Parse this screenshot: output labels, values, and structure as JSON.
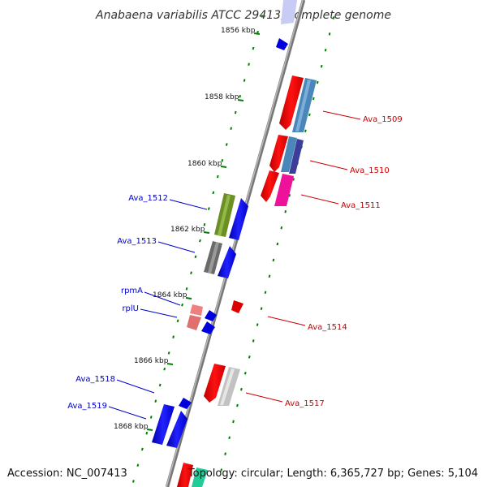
{
  "title": "Anabaena variabilis ATCC 29413, complete genome",
  "accession": "Accession: NC_007413",
  "topology": "Topology: circular; Length: 6,365,727 bp; Genes: 5,104",
  "kbp_markers": [
    "1856 kbp",
    "1858 kbp",
    "1860 kbp",
    "1862 kbp",
    "1864 kbp",
    "1866 kbp",
    "1868 kbp"
  ],
  "gene_labels_right": [
    "Ava_1509",
    "Ava_1510",
    "Ava_1511",
    "Ava_1514",
    "Ava_1517"
  ],
  "gene_labels_left": [
    "Ava_1512",
    "Ava_1513",
    "rpmA",
    "rplU",
    "Ava_1518",
    "Ava_1519"
  ],
  "colors": {
    "forward_label": "#cc0000",
    "reverse_label": "#0000cc",
    "backbone": "#888888",
    "ticks": "#008000"
  }
}
